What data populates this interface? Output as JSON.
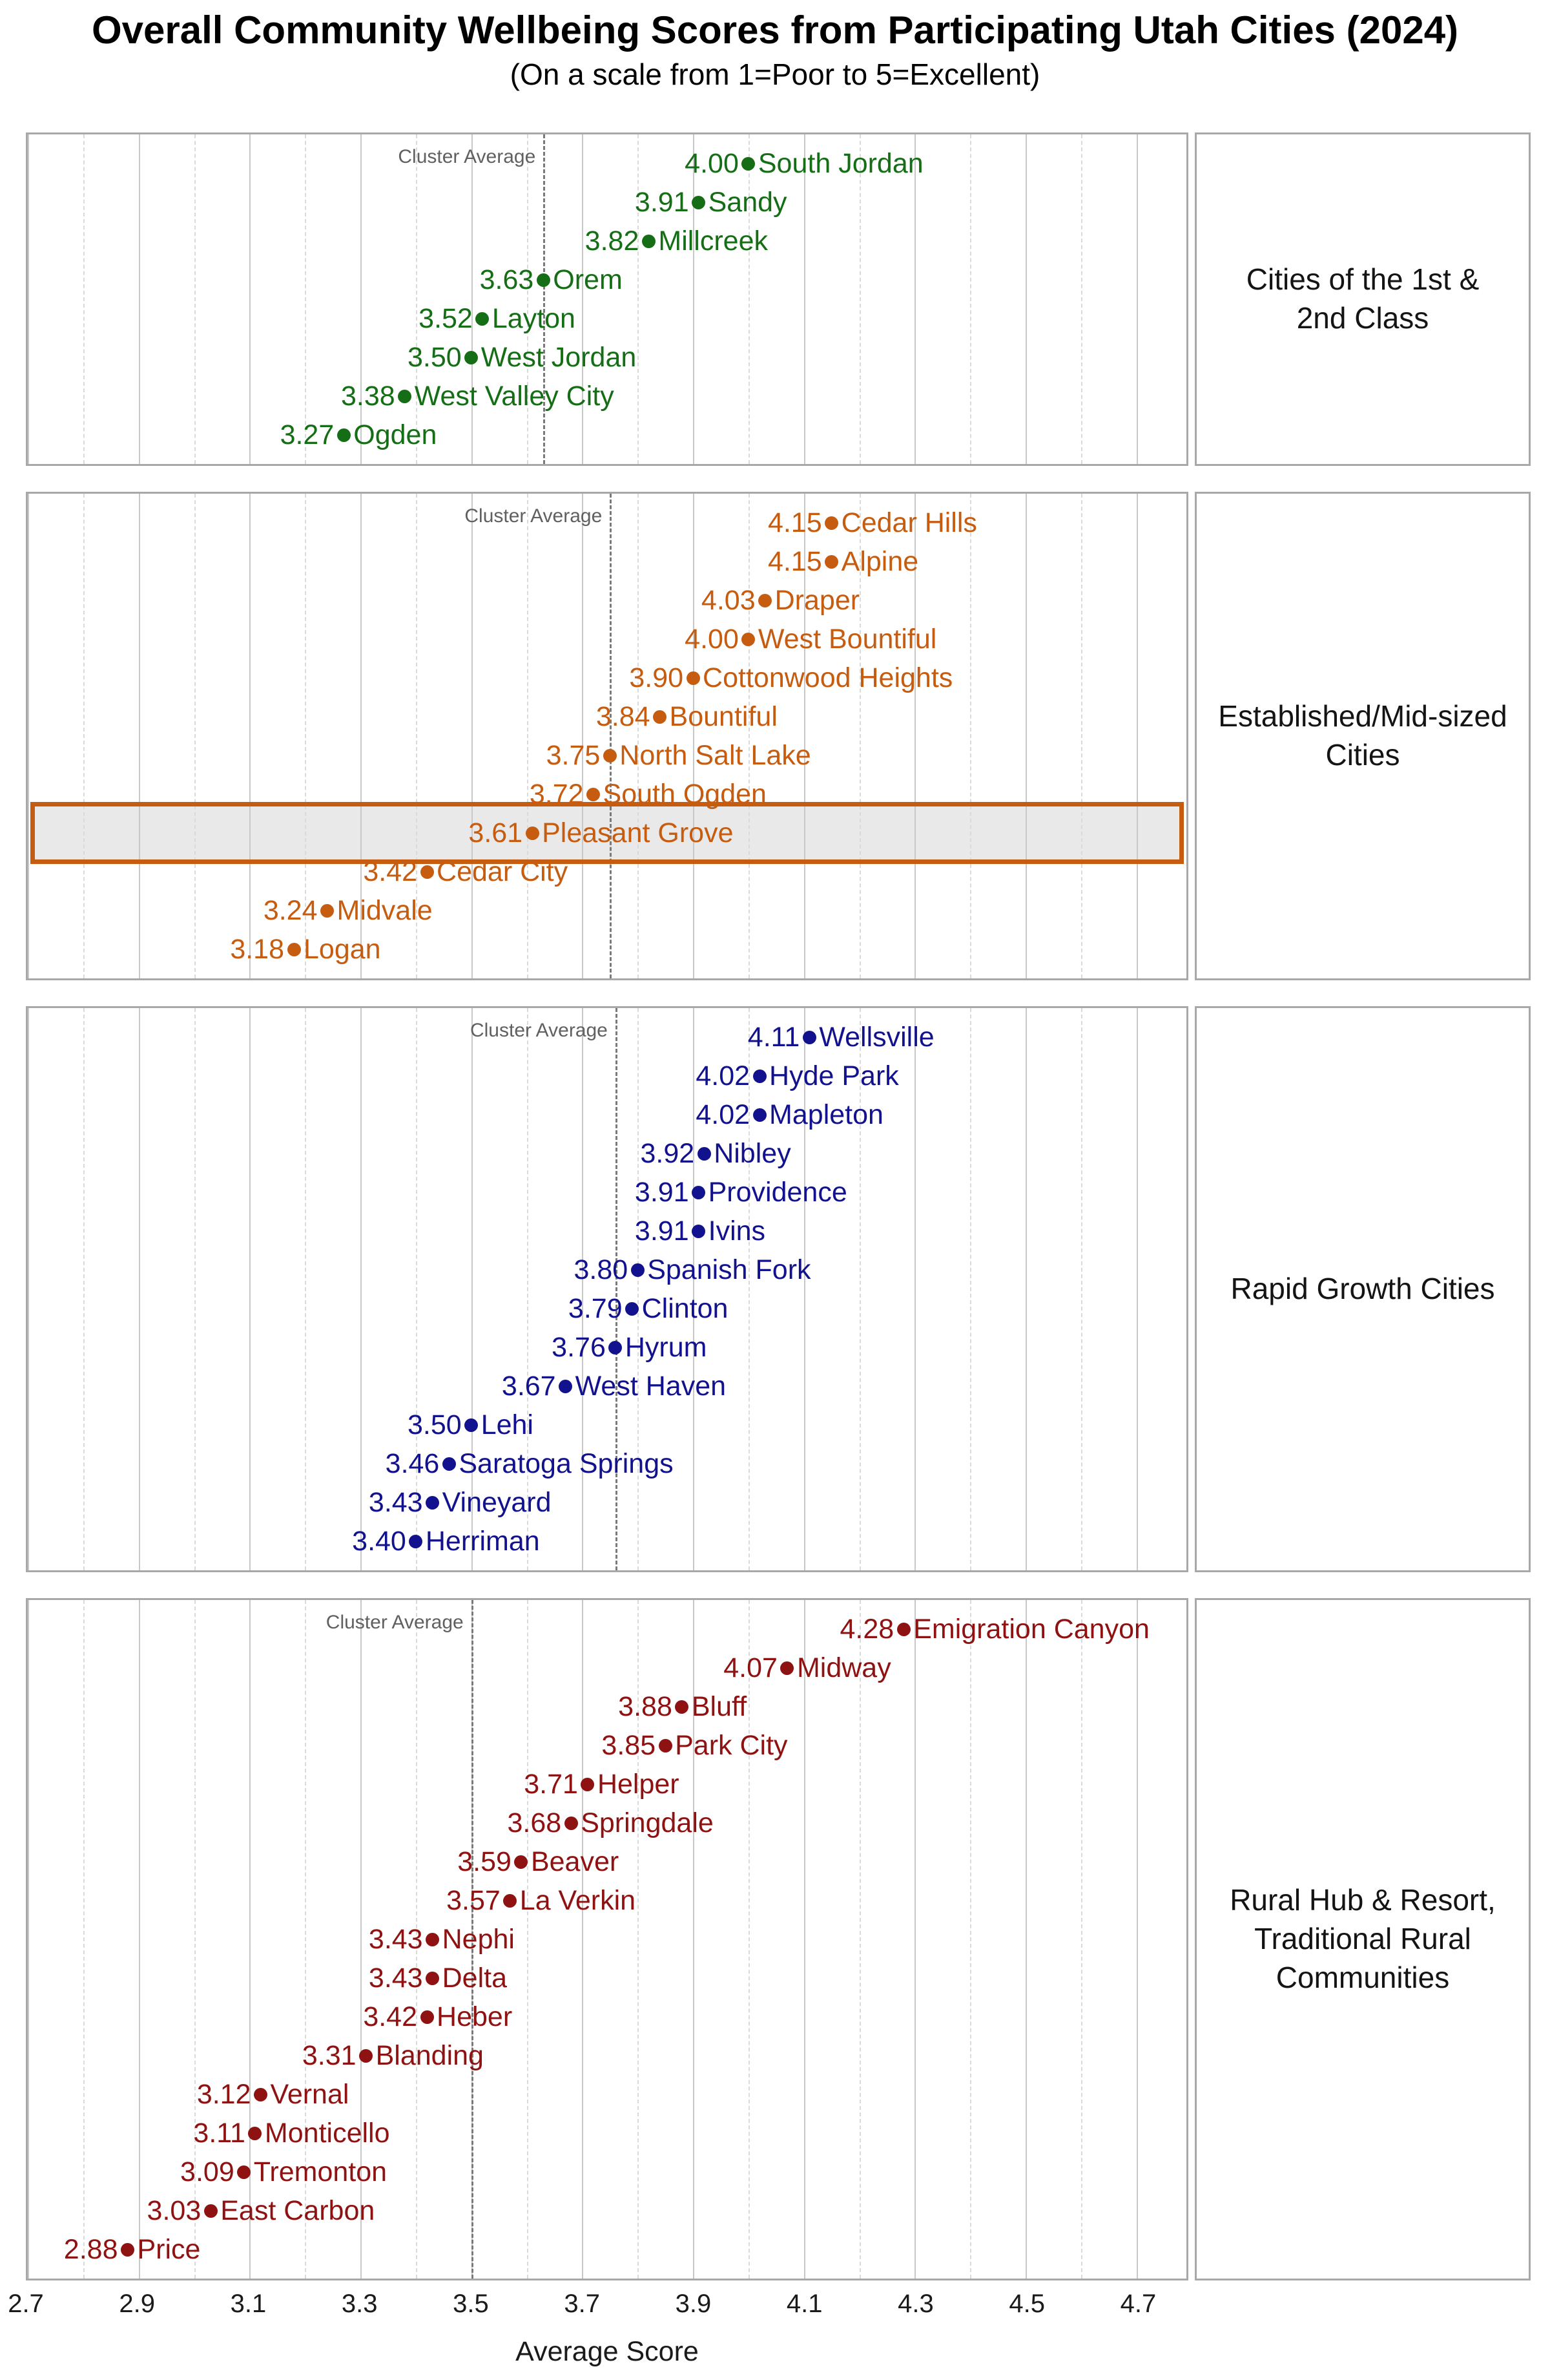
{
  "chart_data": {
    "type": "scatter",
    "title": "Overall Community Wellbeing Scores from Participating Utah Cities (2024)",
    "subtitle": "(On a scale from 1=Poor to 5=Excellent)",
    "xlabel": "Average Score",
    "x_range": [
      2.7,
      4.79
    ],
    "x_ticks": [
      2.7,
      2.9,
      3.1,
      3.3,
      3.5,
      3.7,
      3.9,
      4.1,
      4.3,
      4.5,
      4.7
    ],
    "x_tick_labels": [
      "2.7",
      "2.9",
      "3.1",
      "3.3",
      "3.5",
      "3.7",
      "3.9",
      "4.1",
      "4.3",
      "4.5",
      "4.7"
    ],
    "x_minor_ticks": [
      2.8,
      3.0,
      3.2,
      3.4,
      3.6,
      3.8,
      4.0,
      4.2,
      4.4,
      4.6
    ],
    "grid": true,
    "legend_position": "none",
    "cluster_average_label": "Cluster Average",
    "highlight_city": "Pleasant Grove",
    "facets": [
      {
        "label_lines": [
          "Cities of the 1st &",
          "2nd Class"
        ],
        "color": "#156e15",
        "cluster_average": 3.63,
        "points": [
          {
            "city": "South Jordan",
            "value": 4.0,
            "label": "4.00"
          },
          {
            "city": "Sandy",
            "value": 3.91,
            "label": "3.91"
          },
          {
            "city": "Millcreek",
            "value": 3.82,
            "label": "3.82"
          },
          {
            "city": "Orem",
            "value": 3.63,
            "label": "3.63"
          },
          {
            "city": "Layton",
            "value": 3.52,
            "label": "3.52"
          },
          {
            "city": "West Jordan",
            "value": 3.5,
            "label": "3.50"
          },
          {
            "city": "West Valley City",
            "value": 3.38,
            "label": "3.38"
          },
          {
            "city": "Ogden",
            "value": 3.27,
            "label": "3.27"
          }
        ]
      },
      {
        "label_lines": [
          "Established/Mid-sized",
          "Cities"
        ],
        "color": "#c65c10",
        "cluster_average": 3.75,
        "points": [
          {
            "city": "Cedar Hills",
            "value": 4.15,
            "label": "4.15"
          },
          {
            "city": "Alpine",
            "value": 4.15,
            "label": "4.15"
          },
          {
            "city": "Draper",
            "value": 4.03,
            "label": "4.03"
          },
          {
            "city": "West Bountiful",
            "value": 4.0,
            "label": "4.00"
          },
          {
            "city": "Cottonwood Heights",
            "value": 3.9,
            "label": "3.90"
          },
          {
            "city": "Bountiful",
            "value": 3.84,
            "label": "3.84"
          },
          {
            "city": "North Salt Lake",
            "value": 3.75,
            "label": "3.75"
          },
          {
            "city": "South Ogden",
            "value": 3.72,
            "label": "3.72"
          },
          {
            "city": "Pleasant Grove",
            "value": 3.61,
            "label": "3.61"
          },
          {
            "city": "Cedar City",
            "value": 3.42,
            "label": "3.42"
          },
          {
            "city": "Midvale",
            "value": 3.24,
            "label": "3.24"
          },
          {
            "city": "Logan",
            "value": 3.18,
            "label": "3.18"
          }
        ]
      },
      {
        "label_lines": [
          "Rapid Growth Cities"
        ],
        "color": "#12128e",
        "cluster_average": 3.76,
        "points": [
          {
            "city": "Wellsville",
            "value": 4.11,
            "label": "4.11"
          },
          {
            "city": "Hyde Park",
            "value": 4.02,
            "label": "4.02"
          },
          {
            "city": "Mapleton",
            "value": 4.02,
            "label": "4.02"
          },
          {
            "city": "Nibley",
            "value": 3.92,
            "label": "3.92"
          },
          {
            "city": "Providence",
            "value": 3.91,
            "label": "3.91"
          },
          {
            "city": "Ivins",
            "value": 3.91,
            "label": "3.91"
          },
          {
            "city": "Spanish Fork",
            "value": 3.8,
            "label": "3.80"
          },
          {
            "city": "Clinton",
            "value": 3.79,
            "label": "3.79"
          },
          {
            "city": "Hyrum",
            "value": 3.76,
            "label": "3.76"
          },
          {
            "city": "West Haven",
            "value": 3.67,
            "label": "3.67"
          },
          {
            "city": "Lehi",
            "value": 3.5,
            "label": "3.50"
          },
          {
            "city": "Saratoga Springs",
            "value": 3.46,
            "label": "3.46"
          },
          {
            "city": "Vineyard",
            "value": 3.43,
            "label": "3.43"
          },
          {
            "city": "Herriman",
            "value": 3.4,
            "label": "3.40"
          }
        ]
      },
      {
        "label_lines": [
          "Rural Hub & Resort,",
          "Traditional Rural",
          "Communities"
        ],
        "color": "#8f1212",
        "cluster_average": 3.5,
        "points": [
          {
            "city": "Emigration Canyon",
            "value": 4.28,
            "label": "4.28"
          },
          {
            "city": "Midway",
            "value": 4.07,
            "label": "4.07"
          },
          {
            "city": "Bluff",
            "value": 3.88,
            "label": "3.88"
          },
          {
            "city": "Park City",
            "value": 3.85,
            "label": "3.85"
          },
          {
            "city": "Helper",
            "value": 3.71,
            "label": "3.71"
          },
          {
            "city": "Springdale",
            "value": 3.68,
            "label": "3.68"
          },
          {
            "city": "Beaver",
            "value": 3.59,
            "label": "3.59"
          },
          {
            "city": "La Verkin",
            "value": 3.57,
            "label": "3.57"
          },
          {
            "city": "Nephi",
            "value": 3.43,
            "label": "3.43"
          },
          {
            "city": "Delta",
            "value": 3.43,
            "label": "3.43"
          },
          {
            "city": "Heber",
            "value": 3.42,
            "label": "3.42"
          },
          {
            "city": "Blanding",
            "value": 3.31,
            "label": "3.31"
          },
          {
            "city": "Vernal",
            "value": 3.12,
            "label": "3.12"
          },
          {
            "city": "Monticello",
            "value": 3.11,
            "label": "3.11"
          },
          {
            "city": "Tremonton",
            "value": 3.09,
            "label": "3.09"
          },
          {
            "city": "East Carbon",
            "value": 3.03,
            "label": "3.03"
          },
          {
            "city": "Price",
            "value": 2.88,
            "label": "2.88"
          }
        ]
      }
    ],
    "colors": {
      "class1_green": "#156e15",
      "midsized_orange": "#c65c10",
      "rapid_growth_navy": "#12128e",
      "rural_darkred": "#8f1212",
      "highlight_fill": "#e9e9e9",
      "highlight_border": "#c65c10",
      "gridline_major": "#c8c8c8",
      "gridline_minor": "#dadada",
      "cluster_line": "#7a7a7a",
      "panel_border": "#a8a8a8"
    }
  }
}
